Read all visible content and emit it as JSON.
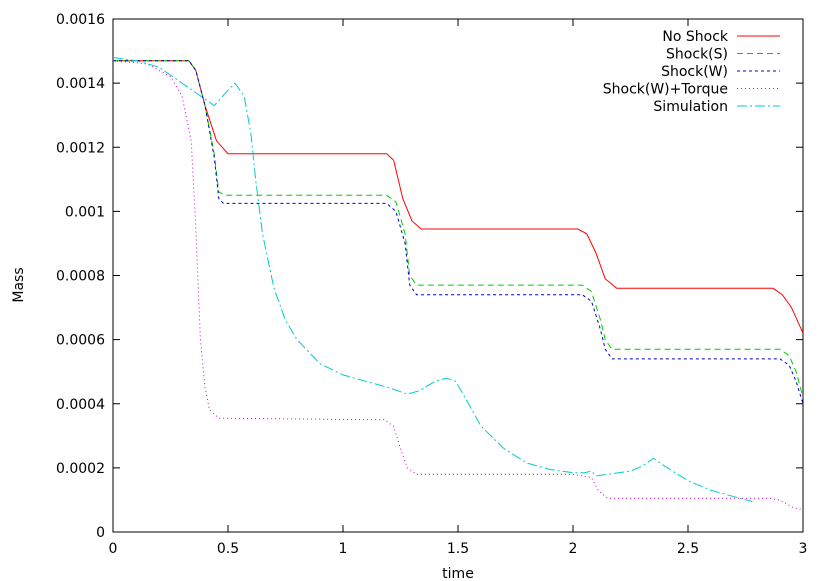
{
  "chart_data": {
    "type": "line",
    "xlabel": "time",
    "ylabel": "Mass",
    "xlim": [
      0,
      3
    ],
    "ylim": [
      0,
      0.0016
    ],
    "grid": false,
    "legend_position": "top-right",
    "x_ticks": [
      {
        "value": 0,
        "label": "0"
      },
      {
        "value": 0.5,
        "label": "0.5"
      },
      {
        "value": 1,
        "label": "1"
      },
      {
        "value": 1.5,
        "label": "1.5"
      },
      {
        "value": 2,
        "label": "2"
      },
      {
        "value": 2.5,
        "label": "2.5"
      },
      {
        "value": 3,
        "label": "3"
      }
    ],
    "y_ticks": [
      {
        "value": 0,
        "label": "0"
      },
      {
        "value": 0.0002,
        "label": "0.0002"
      },
      {
        "value": 0.0004,
        "label": "0.0004"
      },
      {
        "value": 0.0006,
        "label": "0.0006"
      },
      {
        "value": 0.0008,
        "label": "0.0008"
      },
      {
        "value": 0.001,
        "label": "0.001"
      },
      {
        "value": 0.0012,
        "label": "0.0012"
      },
      {
        "value": 0.0014,
        "label": "0.0014"
      },
      {
        "value": 0.0016,
        "label": "0.0016"
      }
    ],
    "series": [
      {
        "name": "No Shock",
        "color": "#ff0000",
        "dash": "",
        "points": [
          [
            0,
            0.00147
          ],
          [
            0.33,
            0.00147
          ],
          [
            0.36,
            0.00144
          ],
          [
            0.4,
            0.00133
          ],
          [
            0.45,
            0.00122
          ],
          [
            0.5,
            0.00118
          ],
          [
            1.19,
            0.00118
          ],
          [
            1.22,
            0.00116
          ],
          [
            1.26,
            0.00104
          ],
          [
            1.3,
            0.00097
          ],
          [
            1.34,
            0.000945
          ],
          [
            2.02,
            0.000945
          ],
          [
            2.06,
            0.00093
          ],
          [
            2.1,
            0.00087
          ],
          [
            2.14,
            0.00079
          ],
          [
            2.19,
            0.00076
          ],
          [
            2.87,
            0.00076
          ],
          [
            2.91,
            0.00074
          ],
          [
            2.95,
            0.0007
          ],
          [
            3.0,
            0.00062
          ]
        ]
      },
      {
        "name": "Shock(S)",
        "color": "#00cc00",
        "dash": "6,4",
        "points": [
          [
            0,
            0.00147
          ],
          [
            0.33,
            0.00147
          ],
          [
            0.36,
            0.00144
          ],
          [
            0.4,
            0.00133
          ],
          [
            0.44,
            0.00118
          ],
          [
            0.46,
            0.00106
          ],
          [
            0.49,
            0.00105
          ],
          [
            1.19,
            0.00105
          ],
          [
            1.23,
            0.00103
          ],
          [
            1.27,
            0.00093
          ],
          [
            1.29,
            0.0008
          ],
          [
            1.32,
            0.00077
          ],
          [
            2.04,
            0.00077
          ],
          [
            2.08,
            0.00075
          ],
          [
            2.12,
            0.00066
          ],
          [
            2.14,
            0.0006
          ],
          [
            2.17,
            0.00057
          ],
          [
            2.9,
            0.00057
          ],
          [
            2.94,
            0.00055
          ],
          [
            2.97,
            0.0005
          ],
          [
            3.0,
            0.00042
          ]
        ]
      },
      {
        "name": "Shock(W)",
        "color": "#0000cc",
        "dash": "3,3",
        "points": [
          [
            0,
            0.00147
          ],
          [
            0.33,
            0.00147
          ],
          [
            0.36,
            0.00144
          ],
          [
            0.4,
            0.00133
          ],
          [
            0.44,
            0.00117
          ],
          [
            0.46,
            0.00104
          ],
          [
            0.48,
            0.001025
          ],
          [
            1.19,
            0.001025
          ],
          [
            1.23,
            0.001
          ],
          [
            1.27,
            0.0009
          ],
          [
            1.29,
            0.00077
          ],
          [
            1.32,
            0.00074
          ],
          [
            2.04,
            0.00074
          ],
          [
            2.08,
            0.00072
          ],
          [
            2.12,
            0.00063
          ],
          [
            2.14,
            0.00057
          ],
          [
            2.17,
            0.00054
          ],
          [
            2.9,
            0.00054
          ],
          [
            2.94,
            0.00052
          ],
          [
            2.97,
            0.00047
          ],
          [
            3.0,
            0.0004
          ]
        ]
      },
      {
        "name": "Shock(W)+Torque",
        "color": "#cc00cc",
        "dash": "1,3",
        "points": [
          [
            0,
            0.00147
          ],
          [
            0.15,
            0.00146
          ],
          [
            0.25,
            0.00142
          ],
          [
            0.3,
            0.00136
          ],
          [
            0.34,
            0.00122
          ],
          [
            0.36,
            0.00095
          ],
          [
            0.38,
            0.0006
          ],
          [
            0.4,
            0.00045
          ],
          [
            0.42,
            0.00038
          ],
          [
            0.46,
            0.000355
          ],
          [
            1.18,
            0.00035
          ],
          [
            1.22,
            0.00033
          ],
          [
            1.25,
            0.00026
          ],
          [
            1.28,
            0.0002
          ],
          [
            1.32,
            0.00018
          ],
          [
            2.0,
            0.00018
          ],
          [
            2.08,
            0.00017
          ],
          [
            2.11,
            0.00013
          ],
          [
            2.15,
            0.000105
          ],
          [
            2.85,
            0.000105
          ],
          [
            2.9,
            0.0001
          ],
          [
            2.96,
            7.5e-05
          ],
          [
            3.0,
            7e-05
          ]
        ]
      },
      {
        "name": "Simulation",
        "color": "#00cccc",
        "dash": "10,3,2,3",
        "points": [
          [
            0,
            0.00148
          ],
          [
            0.1,
            0.00147
          ],
          [
            0.2,
            0.00145
          ],
          [
            0.3,
            0.0014
          ],
          [
            0.38,
            0.00136
          ],
          [
            0.44,
            0.00133
          ],
          [
            0.49,
            0.00137
          ],
          [
            0.53,
            0.0014
          ],
          [
            0.57,
            0.00136
          ],
          [
            0.6,
            0.00124
          ],
          [
            0.62,
            0.0011
          ],
          [
            0.65,
            0.00093
          ],
          [
            0.7,
            0.00076
          ],
          [
            0.75,
            0.00066
          ],
          [
            0.8,
            0.0006
          ],
          [
            0.9,
            0.000525
          ],
          [
            1.0,
            0.00049
          ],
          [
            1.1,
            0.00047
          ],
          [
            1.2,
            0.00045
          ],
          [
            1.28,
            0.00043
          ],
          [
            1.33,
            0.00044
          ],
          [
            1.4,
            0.00047
          ],
          [
            1.45,
            0.00048
          ],
          [
            1.49,
            0.00047
          ],
          [
            1.53,
            0.00042
          ],
          [
            1.6,
            0.00033
          ],
          [
            1.7,
            0.00026
          ],
          [
            1.8,
            0.000215
          ],
          [
            1.9,
            0.000195
          ],
          [
            2.0,
            0.000185
          ],
          [
            2.05,
            0.000185
          ],
          [
            2.08,
            0.00019
          ],
          [
            2.1,
            0.000175
          ],
          [
            2.15,
            0.00018
          ],
          [
            2.25,
            0.00019
          ],
          [
            2.3,
            0.000205
          ],
          [
            2.35,
            0.00023
          ],
          [
            2.4,
            0.000205
          ],
          [
            2.5,
            0.00016
          ],
          [
            2.6,
            0.00013
          ],
          [
            2.7,
            0.00011
          ],
          [
            2.78,
            9.5e-05
          ]
        ]
      }
    ]
  }
}
